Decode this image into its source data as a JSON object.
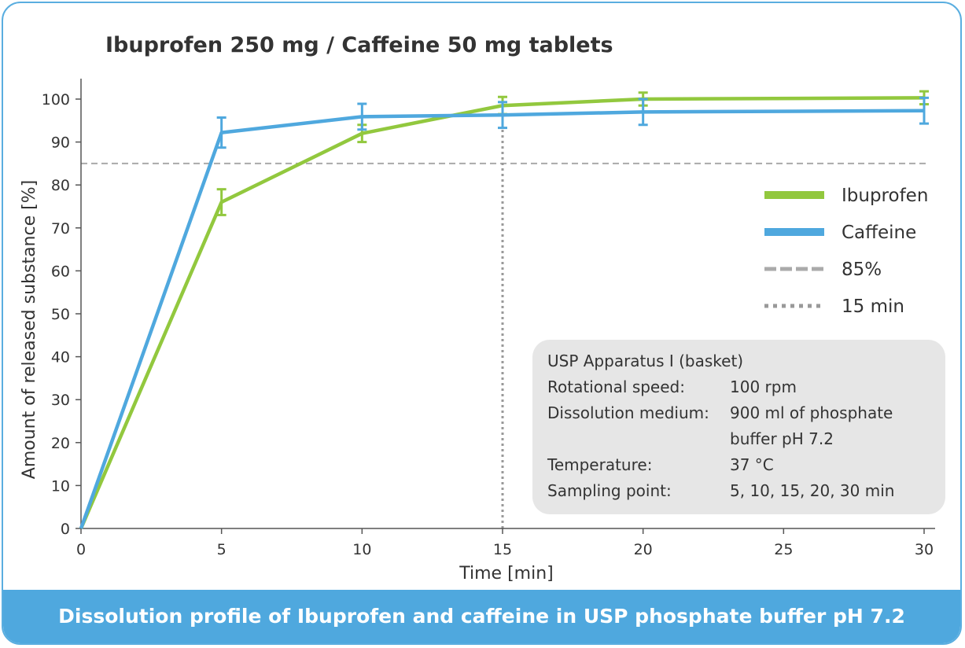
{
  "chart_data": {
    "type": "line",
    "title": "Ibuprofen 250 mg / Caffeine 50 mg tablets",
    "xlabel": "Time [min]",
    "ylabel": "Amount of released substance [%]",
    "xlim": [
      0,
      30
    ],
    "ylim": [
      0,
      105
    ],
    "x_ticks": [
      "0",
      "5",
      "10",
      "15",
      "20",
      "25",
      "30"
    ],
    "y_ticks": [
      "0",
      "10",
      "20",
      "30",
      "40",
      "50",
      "60",
      "70",
      "80",
      "90",
      "100"
    ],
    "x": [
      0,
      5,
      10,
      15,
      20,
      30
    ],
    "series": [
      {
        "name": "Ibuprofen",
        "color": "#92c83e",
        "values": [
          0,
          76,
          92,
          98.5,
          100,
          100.3
        ],
        "error": [
          0,
          3,
          2,
          2,
          1.5,
          1.5
        ]
      },
      {
        "name": "Caffeine",
        "color": "#4fa8de",
        "values": [
          0,
          92.2,
          95.9,
          96.3,
          97,
          97.3
        ],
        "error": [
          0,
          3.5,
          3,
          3,
          3,
          3
        ]
      }
    ],
    "reference_lines": [
      {
        "label": "85%",
        "orientation": "horizontal",
        "value": 85,
        "style": "dashed",
        "color": "#aaaaaa"
      },
      {
        "label": "15 min",
        "orientation": "vertical",
        "value": 15,
        "style": "dotted",
        "color": "#999999"
      }
    ],
    "legend_position": "right",
    "grid": false
  },
  "info_box": {
    "heading": "USP Apparatus I (basket)",
    "rows": [
      {
        "label": "Rotational speed:",
        "value": "100 rpm",
        "value2": ""
      },
      {
        "label": "Dissolution medium:",
        "value": "900 ml of phosphate",
        "value2": "buffer pH 7.2"
      },
      {
        "label": "Temperature:",
        "value": "37 °C",
        "value2": ""
      },
      {
        "label": "Sampling point:",
        "value": "5, 10, 15, 20, 30 min",
        "value2": ""
      }
    ]
  },
  "footer": {
    "caption": "Dissolution profile of Ibuprofen and caffeine in USP phosphate buffer pH 7.2"
  },
  "colors": {
    "frame": "#5aaee0",
    "footer_bg": "#4fa8de",
    "info_bg": "#e6e6e6"
  }
}
